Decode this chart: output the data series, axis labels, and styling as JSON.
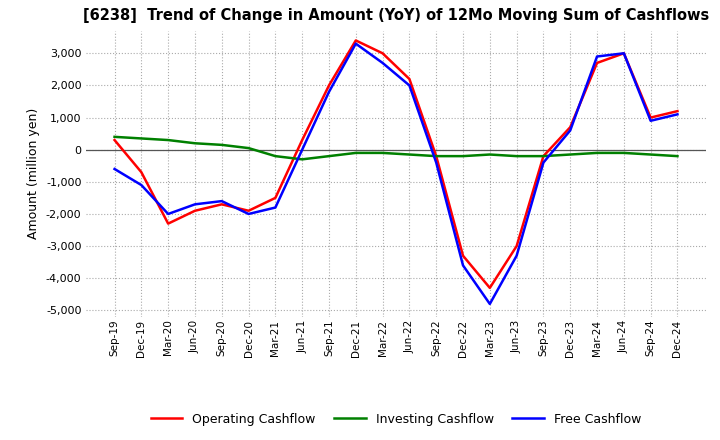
{
  "title": "[6238]  Trend of Change in Amount (YoY) of 12Mo Moving Sum of Cashflows",
  "ylabel": "Amount (million yen)",
  "x_labels": [
    "Sep-19",
    "Dec-19",
    "Mar-20",
    "Jun-20",
    "Sep-20",
    "Dec-20",
    "Mar-21",
    "Jun-21",
    "Sep-21",
    "Dec-21",
    "Mar-22",
    "Jun-22",
    "Sep-22",
    "Dec-22",
    "Mar-23",
    "Jun-23",
    "Sep-23",
    "Dec-23",
    "Mar-24",
    "Jun-24",
    "Sep-24",
    "Dec-24"
  ],
  "operating": [
    300,
    -700,
    -2300,
    -1900,
    -1700,
    -1900,
    -1500,
    300,
    2000,
    3400,
    3000,
    2200,
    -200,
    -3300,
    -4300,
    -3000,
    -200,
    700,
    2700,
    3000,
    1000,
    1200
  ],
  "investing": [
    400,
    350,
    300,
    200,
    150,
    50,
    -200,
    -300,
    -200,
    -100,
    -100,
    -150,
    -200,
    -200,
    -150,
    -200,
    -200,
    -150,
    -100,
    -100,
    -150,
    -200
  ],
  "free": [
    -600,
    -1100,
    -2000,
    -1700,
    -1600,
    -2000,
    -1800,
    0,
    1800,
    3300,
    2700,
    2000,
    -400,
    -3600,
    -4800,
    -3300,
    -400,
    600,
    2900,
    3000,
    900,
    1100
  ],
  "ylim": [
    -5200,
    3700
  ],
  "yticks": [
    -5000,
    -4000,
    -3000,
    -2000,
    -1000,
    0,
    1000,
    2000,
    3000
  ],
  "operating_color": "#ff0000",
  "investing_color": "#008000",
  "free_color": "#0000ff",
  "bg_color": "#ffffff",
  "grid_color": "#aaaaaa"
}
